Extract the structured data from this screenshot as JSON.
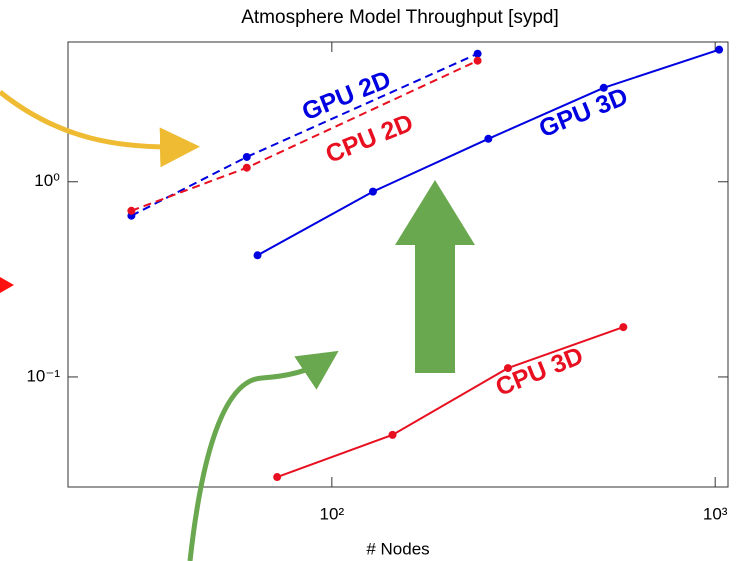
{
  "chart_data": {
    "type": "line",
    "title": "Atmosphere Model Throughput [sypd]",
    "xlabel": "# Nodes",
    "xscale": "log",
    "yscale": "log",
    "xlim": [
      20.5,
      1080
    ],
    "ylim": [
      0.0273,
      5.2
    ],
    "xticks": [
      {
        "value": 100,
        "label": "10²"
      },
      {
        "value": 1000,
        "label": "10³"
      }
    ],
    "yticks": [
      {
        "value": 0.1,
        "label": "10⁻¹"
      },
      {
        "value": 1,
        "label": "10⁰"
      }
    ],
    "series": [
      {
        "name": "GPU 2D",
        "color": "#0000e0",
        "linestyle": "dashed",
        "x": [
          30,
          60,
          240
        ],
        "values": [
          0.67,
          1.34,
          4.53
        ]
      },
      {
        "name": "CPU 2D",
        "color": "#e81020",
        "linestyle": "dashed",
        "x": [
          30,
          60,
          240
        ],
        "values": [
          0.71,
          1.18,
          4.17
        ]
      },
      {
        "name": "GPU 3D",
        "color": "#0000e0",
        "linestyle": "solid",
        "x": [
          64,
          128,
          256,
          512,
          1024
        ],
        "values": [
          0.42,
          0.89,
          1.66,
          3.03,
          4.75
        ]
      },
      {
        "name": "CPU 3D",
        "color": "#e81020",
        "linestyle": "solid",
        "x": [
          72,
          144,
          288,
          576
        ],
        "values": [
          0.0307,
          0.0505,
          0.111,
          0.18
        ]
      }
    ]
  }
}
